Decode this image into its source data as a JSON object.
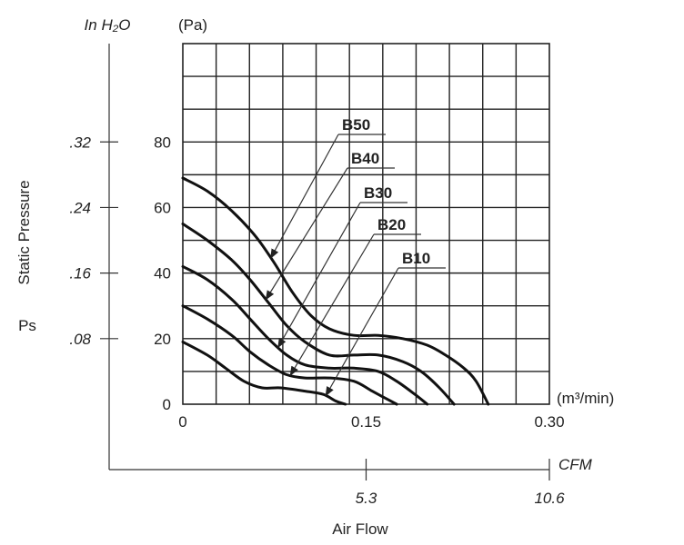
{
  "chart_data": {
    "type": "line",
    "title": "",
    "xlabel": "Air Flow",
    "x_unit": "(m³/min)",
    "x_secondary_unit": "CFM",
    "y_primary_unit": "(Pa)",
    "y_secondary_unit": "In H₂O",
    "ylabel_line1": "Static Pressure",
    "ylabel_line2": "Ps",
    "xlim": [
      0,
      0.3
    ],
    "ylim": [
      0,
      110
    ],
    "x_ticks": [
      0,
      0.15,
      0.3
    ],
    "x_tick_labels": [
      "0",
      "0.15",
      "0.30"
    ],
    "y_ticks": [
      0,
      20,
      40,
      60,
      80
    ],
    "y_tick_labels": [
      "0",
      "20",
      "40",
      "60",
      "80"
    ],
    "y2_ticks": [
      20,
      40,
      60,
      80
    ],
    "y2_tick_labels": [
      ".08",
      ".16",
      ".24",
      ".32"
    ],
    "x2_ticks": [
      0.15,
      0.3
    ],
    "x2_tick_labels": [
      "5.3",
      "10.6"
    ],
    "grid": true,
    "series": [
      {
        "name": "B50",
        "x": [
          0,
          0.02,
          0.04,
          0.06,
          0.075,
          0.09,
          0.105,
          0.12,
          0.14,
          0.16,
          0.18,
          0.2,
          0.215,
          0.23,
          0.24,
          0.25
        ],
        "y": [
          69,
          65,
          59,
          51,
          43,
          34,
          27,
          23,
          21,
          21,
          20,
          18,
          15,
          11,
          7,
          0
        ]
      },
      {
        "name": "B40",
        "x": [
          0,
          0.02,
          0.04,
          0.055,
          0.07,
          0.085,
          0.1,
          0.12,
          0.14,
          0.16,
          0.18,
          0.195,
          0.21,
          0.222
        ],
        "y": [
          55,
          50,
          44,
          38,
          31,
          24,
          19,
          15,
          15,
          15,
          13,
          10,
          5,
          0
        ]
      },
      {
        "name": "B30",
        "x": [
          0,
          0.02,
          0.04,
          0.055,
          0.07,
          0.085,
          0.1,
          0.12,
          0.14,
          0.16,
          0.175,
          0.19,
          0.2
        ],
        "y": [
          42,
          38,
          32,
          26,
          20,
          15,
          12,
          11,
          11,
          10,
          7,
          3,
          0
        ]
      },
      {
        "name": "B20",
        "x": [
          0,
          0.02,
          0.04,
          0.055,
          0.07,
          0.085,
          0.1,
          0.12,
          0.14,
          0.155,
          0.165,
          0.175
        ],
        "y": [
          30,
          26,
          21,
          16,
          12,
          9,
          8,
          8,
          7,
          4,
          2,
          0
        ]
      },
      {
        "name": "B10",
        "x": [
          0,
          0.02,
          0.035,
          0.05,
          0.065,
          0.08,
          0.1,
          0.115,
          0.125,
          0.133
        ],
        "y": [
          19,
          15,
          11,
          7,
          5,
          5,
          4,
          3,
          1,
          0
        ]
      }
    ]
  }
}
